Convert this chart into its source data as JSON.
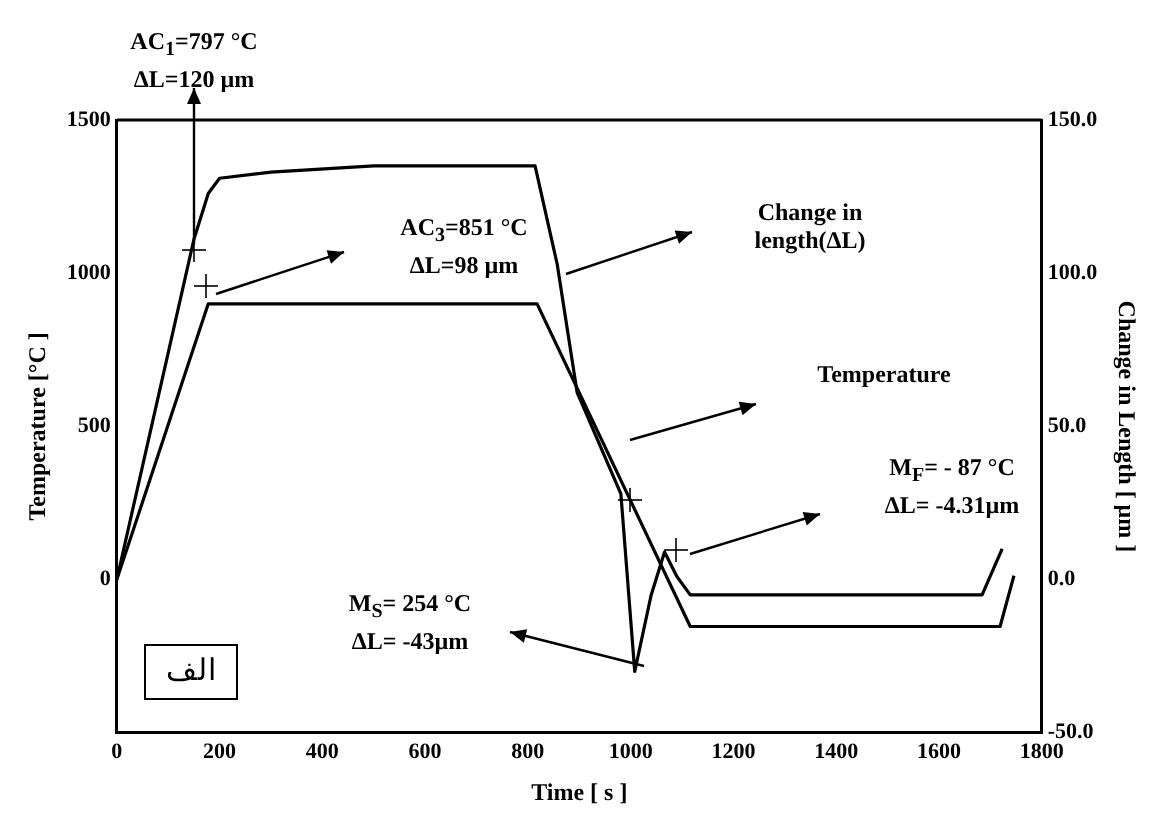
{
  "chart_data": {
    "type": "line",
    "xlabel": "Time [ s ]",
    "ylabel": "Temperature [°C ]",
    "y2label": "Change in Length [ μm ]",
    "xlim": [
      0,
      1800
    ],
    "xticks": [
      0,
      200,
      400,
      600,
      800,
      1000,
      1200,
      1400,
      1600,
      1800
    ],
    "ylim": [
      -500,
      1500
    ],
    "yticks": [
      0,
      500,
      1000,
      1500
    ],
    "y2lim": [
      -50,
      150
    ],
    "y2ticks": [
      {
        "value": -50,
        "label": "-50.0"
      },
      {
        "value": 0,
        "label": "0.0"
      },
      {
        "value": 50,
        "label": "50.0"
      },
      {
        "value": 100,
        "label": "100.0"
      },
      {
        "value": 150,
        "label": "150.0"
      }
    ],
    "grid": false,
    "legend": false,
    "marker": "none",
    "line_style": "solid",
    "series": [
      {
        "color": "#000000",
        "axis": "y2",
        "x": [
          0,
          150,
          178,
          200,
          300,
          500,
          814,
          857,
          896,
          981,
          1008,
          1040,
          1066,
          1090,
          1116,
          1684,
          1723
        ],
        "values": [
          0,
          111,
          126,
          131,
          133,
          135,
          135,
          103,
          61,
          28,
          -30,
          -5,
          9,
          1,
          -5,
          -5,
          10
        ]
      },
      {
        "color": "#000000",
        "x": [
          0,
          178,
          818,
          1116,
          1719,
          1746
        ],
        "values": [
          0,
          900,
          900,
          -153,
          -153,
          13
        ]
      }
    ],
    "annotations": [
      "Change in\nlength(ΔL)",
      "Temperature",
      "AC$_{1}$=797 °C\nΔL=120 µm",
      "AC$_{3}$=851 °C\nΔL=98 µm",
      "M$_{F}$= - 87 °C\nΔL= -4.31µm",
      "M$_{S}$= 254 °C\nΔL= -43µm",
      "الف"
    ]
  }
}
